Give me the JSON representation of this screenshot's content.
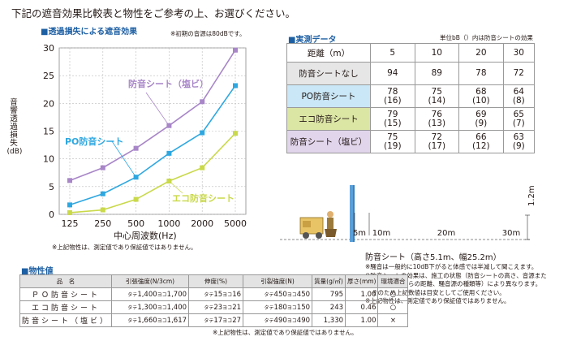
{
  "intro": "下記の遮音効果比較表と物性をご参考の上、お選びください。",
  "chart_data": {
    "type": "line",
    "title": "■透過損失による遮音効果",
    "note": "※初期の音源は80dBです。",
    "ylabel": "音響透過損失(dB)",
    "xlabel": "中心周波数(Hz)",
    "categories": [
      "125",
      "250",
      "500",
      "1000",
      "2000",
      "5000"
    ],
    "yticks": [
      "0",
      "5",
      "10",
      "15",
      "20",
      "25",
      "30"
    ],
    "ylim": [
      0,
      30
    ],
    "grid": true,
    "series": [
      {
        "name": "防音シート（塩ビ）",
        "color": "#a886c8",
        "values": [
          6.1,
          8.4,
          11.9,
          16.0,
          20.3,
          29.6
        ]
      },
      {
        "name": "PO防音シート",
        "color": "#2ea7e0",
        "values": [
          1.7,
          3.7,
          6.7,
          11.0,
          14.7,
          23.2
        ]
      },
      {
        "name": "エコ防音シート",
        "color": "#c9d94a",
        "values": [
          0.3,
          0.8,
          2.7,
          6.0,
          8.4,
          14.6
        ]
      }
    ],
    "footnote": "※上記物性は、測定値であり保証値ではありません。"
  },
  "measurement": {
    "title": "■実測データ",
    "unit_note": "単位bB（）内は防音シートの効果",
    "header": [
      "距離（m）",
      "5",
      "10",
      "20",
      "30"
    ],
    "rows": [
      {
        "label": "防音シートなし",
        "bg": "#e6e6e6",
        "cells": [
          "94",
          "89",
          "78",
          "72"
        ]
      },
      {
        "label": "PO防音シート",
        "bg": "#c9e7f7",
        "cells": [
          "78\n(16)",
          "75\n(14)",
          "68\n(10)",
          "64\n(8)"
        ]
      },
      {
        "label": "エコ防音シート",
        "bg": "#dbe5a4",
        "cells": [
          "79\n(15)",
          "76\n(13)",
          "69\n(9)",
          "65\n(7)"
        ]
      },
      {
        "label": "防音シート（塩ビ）",
        "bg": "#e1d5ec",
        "cells": [
          "75\n(19)",
          "72\n(17)",
          "66\n(12)",
          "63\n(9)"
        ]
      }
    ]
  },
  "illustration": {
    "height_label": "1.2m",
    "distance_labels": [
      "5m",
      "10m",
      "20m",
      "30m"
    ],
    "sheet_label": "防音シート（高さ5.1m、幅25.2m）",
    "notes": [
      "※騒音は一般的に10dB下がると体感では半減して聞こえます。",
      "※防音シートの効果は、施工の状態（防音シートの高さ、音源また",
      "は、受音点からの距離、騒音源の種類等）により異なります。",
      "そのため上記数値は目安としてご使用ください。",
      "※上記物性は、測定値であり保証値ではありません。"
    ]
  },
  "properties": {
    "title": "■物性値",
    "header": [
      "品　名",
      "引張強度(N/3cm)",
      "伸度(%)",
      "引裂強度(N)",
      "質量(g/㎡)",
      "厚さ(mm)",
      "環境適合"
    ],
    "rows": [
      {
        "name": "ＰＯ防音シート",
        "tensile": [
          "1,400",
          "1,700"
        ],
        "elong": [
          "15",
          "16"
        ],
        "tear": [
          "450",
          "450"
        ],
        "mass": "795",
        "thick": "1.00",
        "eco": "○"
      },
      {
        "name": "エコ防音シート",
        "tensile": [
          "1,300",
          "1,400"
        ],
        "elong": [
          "23",
          "21"
        ],
        "tear": [
          "180",
          "150"
        ],
        "mass": "243",
        "thick": "0.46",
        "eco": "○"
      },
      {
        "name": "防音シート（塩ビ）",
        "tensile": [
          "1,660",
          "1,617"
        ],
        "elong": [
          "17",
          "27"
        ],
        "tear": [
          "490",
          "490"
        ],
        "mass": "1,330",
        "thick": "1.00",
        "eco": "×"
      }
    ],
    "prefix_warp": "タテ",
    "prefix_weft": "ヨコ",
    "footnote": "※上記物性は、測定値であり保証値ではありません。"
  }
}
